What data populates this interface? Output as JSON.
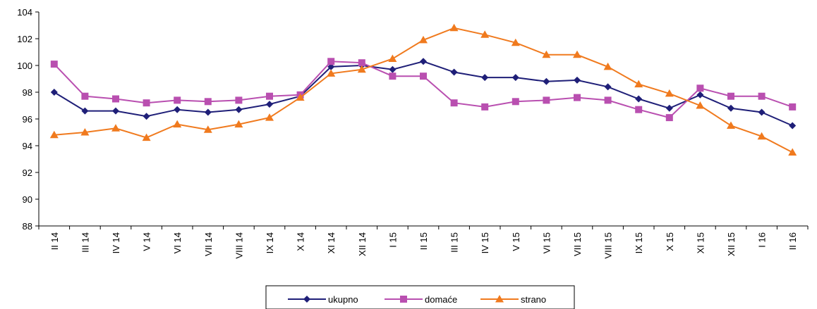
{
  "chart_data": {
    "type": "line",
    "title": "",
    "xlabel": "",
    "ylabel": "",
    "ylim": [
      88,
      104
    ],
    "yticks": [
      88,
      90,
      92,
      94,
      96,
      98,
      100,
      102,
      104
    ],
    "grid": false,
    "legend_position": "bottom",
    "categories": [
      "II 14",
      "III 14",
      "IV 14",
      "V 14",
      "VI 14",
      "VII 14",
      "VIII 14",
      "IX 14",
      "X 14",
      "XI 14",
      "XII 14",
      "I 15",
      "II 15",
      "III 15",
      "IV 15",
      "V 15",
      "VI 15",
      "VII 15",
      "VIII 15",
      "IX 15",
      "X 15",
      "XI 15",
      "XII 15",
      "I 16",
      "II 16"
    ],
    "series": [
      {
        "name": "ukupno",
        "color": "#1f1f78",
        "marker": "diamond",
        "values": [
          98.0,
          96.6,
          96.6,
          96.2,
          96.7,
          96.5,
          96.7,
          97.1,
          97.7,
          99.9,
          100.0,
          99.7,
          100.3,
          99.5,
          99.1,
          99.1,
          98.8,
          98.9,
          98.4,
          97.5,
          96.8,
          97.8,
          96.8,
          96.5,
          95.5
        ]
      },
      {
        "name": "domaće",
        "color": "#b94fb0",
        "marker": "square",
        "values": [
          100.1,
          97.7,
          97.5,
          97.2,
          97.4,
          97.3,
          97.4,
          97.7,
          97.8,
          100.3,
          100.2,
          99.2,
          99.2,
          97.2,
          96.9,
          97.3,
          97.4,
          97.6,
          97.4,
          96.7,
          96.1,
          98.3,
          97.7,
          97.7,
          96.9
        ]
      },
      {
        "name": "strano",
        "color": "#f07a1e",
        "marker": "triangle",
        "values": [
          94.8,
          95.0,
          95.3,
          94.6,
          95.6,
          95.2,
          95.6,
          96.1,
          97.6,
          99.4,
          99.7,
          100.5,
          101.9,
          102.8,
          102.3,
          101.7,
          100.8,
          100.8,
          99.9,
          98.6,
          97.9,
          97.0,
          95.5,
          94.7,
          93.5
        ]
      }
    ]
  }
}
